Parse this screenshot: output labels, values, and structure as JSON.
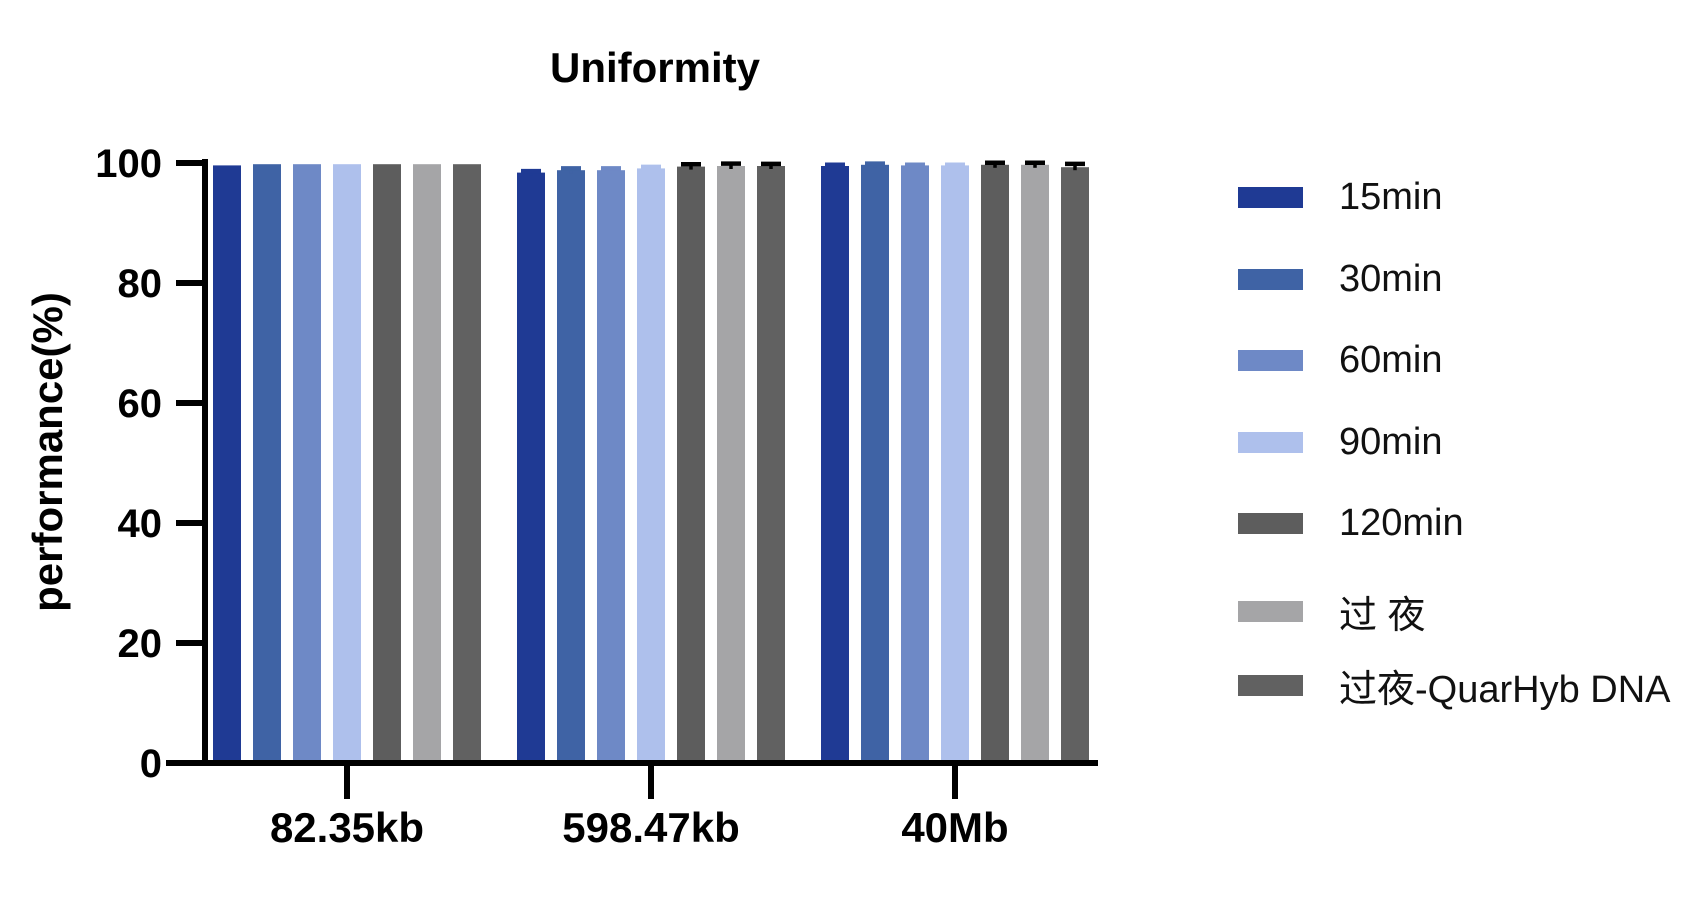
{
  "chart_data": {
    "type": "bar",
    "title": "Uniformity",
    "xlabel": "",
    "ylabel": "performance(%)",
    "ylim": [
      0,
      100
    ],
    "yticks": [
      0,
      20,
      40,
      60,
      80,
      100
    ],
    "grid": false,
    "legend_position": "right",
    "categories": [
      "82.35kb",
      "598.47kb",
      "40Mb"
    ],
    "series": [
      {
        "name": "15min",
        "color": "#1f3a94",
        "error_color": "#1f3a94",
        "values": [
          99.6,
          98.4,
          99.5
        ],
        "errors": [
          0,
          0.25,
          0.2
        ]
      },
      {
        "name": "30min",
        "color": "#3f63a5",
        "error_color": "#3f63a5",
        "values": [
          99.8,
          98.8,
          99.7
        ],
        "errors": [
          0,
          0.3,
          0.2
        ]
      },
      {
        "name": "60min",
        "color": "#6e89c6",
        "error_color": "#6e89c6",
        "values": [
          99.8,
          98.8,
          99.6
        ],
        "errors": [
          0,
          0.3,
          0.1
        ]
      },
      {
        "name": "90min",
        "color": "#aec0ec",
        "error_color": "#aec0ec",
        "values": [
          99.8,
          99.1,
          99.6
        ],
        "errors": [
          0,
          0.25,
          0.1
        ]
      },
      {
        "name": "120min",
        "color": "#5d5d5d",
        "error_color": "#000000",
        "values": [
          99.8,
          99.4,
          99.7
        ],
        "errors": [
          0,
          0.4,
          0.35
        ]
      },
      {
        "name": "过 夜",
        "color": "#a5a5a7",
        "error_color": "#000000",
        "values": [
          99.8,
          99.5,
          99.7
        ],
        "errors": [
          0,
          0.4,
          0.35
        ]
      },
      {
        "name": "过夜-QuarHyb DNA",
        "color": "#616161",
        "error_color": "#000000",
        "values": [
          99.8,
          99.5,
          99.3
        ],
        "errors": [
          0,
          0.35,
          0.55
        ]
      }
    ],
    "axis_color": "#000000"
  }
}
